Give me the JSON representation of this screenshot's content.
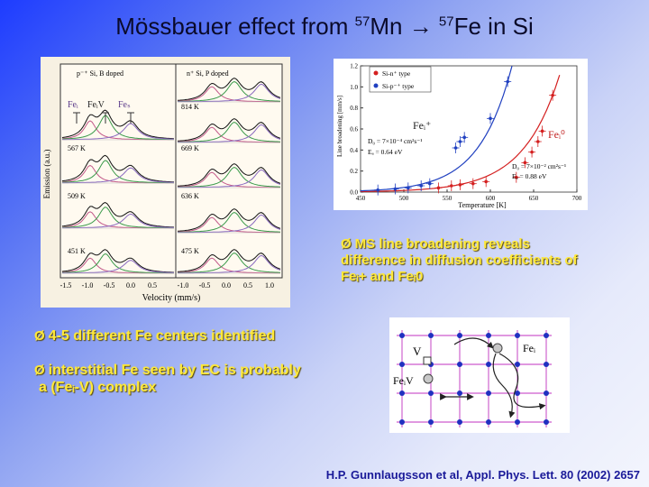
{
  "title": {
    "main": "Mössbauer effect from ",
    "iso1": "57",
    "el1": "Mn ",
    "arrow": "→ ",
    "iso2": "57",
    "el2": "Fe in Si"
  },
  "spectra": {
    "panel_left_header": "p⁻⁺ Si, B doped",
    "panel_right_header": "n⁺ Si, P doped",
    "site_labels": [
      "Feᵢ",
      "FeᵢV",
      "Feₛ"
    ],
    "left_temps": [
      "567 K",
      "509 K",
      "451 K"
    ],
    "right_temps": [
      "814 K",
      "669 K",
      "636 K",
      "475 K"
    ],
    "ylabel": "Emission (a.u.)",
    "xlabel": "Velocity (mm/s)",
    "xticks": [
      "-1.5",
      "-1.0",
      "-0.5",
      "0.0",
      "0.5",
      "-1.0",
      "-0.5",
      "0.0",
      "0.5",
      "1.0"
    ]
  },
  "chart_data": {
    "type": "scatter",
    "xlabel": "Temperature [K]",
    "ylabel": "Line broadening [mm/s]",
    "xlim": [
      450,
      700
    ],
    "ylim": [
      0.0,
      1.2
    ],
    "xticks": [
      450,
      500,
      550,
      600,
      650,
      700
    ],
    "yticks": [
      0.0,
      0.2,
      0.4,
      0.6,
      0.8,
      1.0,
      1.2
    ],
    "legend_position": "top-left",
    "series": [
      {
        "name": "Si-n⁺ type",
        "color": "#d42020",
        "x": [
          540,
          555,
          565,
          580,
          595,
          630,
          640,
          648,
          655,
          660,
          672
        ],
        "y": [
          0.04,
          0.06,
          0.07,
          0.08,
          0.1,
          0.14,
          0.28,
          0.38,
          0.48,
          0.58,
          0.92
        ]
      },
      {
        "name": "Si-p⁻⁺ type",
        "color": "#2040c0",
        "x": [
          470,
          490,
          505,
          520,
          530,
          560,
          565,
          570,
          600,
          620
        ],
        "y": [
          0.02,
          0.03,
          0.04,
          0.06,
          0.08,
          0.42,
          0.48,
          0.52,
          0.7,
          1.05
        ]
      }
    ],
    "annotations": {
      "fe_plus_label": "Feᵢ⁺",
      "fe_zero_label": "Feᵢ⁰",
      "d0_plus": "D₀ = 7×10⁻⁴ cm²s⁻¹",
      "ea_plus": "Eₐ = 0.64 eV",
      "d0_zero": "D₀ = 7×10⁻² cm²s⁻¹",
      "ea_zero": "Eₐ = 0.88 eV"
    }
  },
  "bullets": {
    "ms_line": "MS line broadening reveals difference in diffusion coefficients of Feᵢ+ and Feᵢ0",
    "centers": "4-5 different Fe centers identified",
    "interstitial_line1": "interstitial Fe seen by EC is probably",
    "interstitial_line2": "a (Feᵢ-V) complex"
  },
  "lattice": {
    "v_label": "V",
    "fei_label": "Feᵢ",
    "feiv_label": "FeᵢV"
  },
  "citation": "H.P. Gunnlaugsson et al, Appl. Phys. Lett. 80 (2002) 2657",
  "colors": {
    "bullet": "#ffe93a",
    "citation": "#1a1a99",
    "lattice_node": "#2030c0",
    "lattice_line": "#c030c0"
  }
}
